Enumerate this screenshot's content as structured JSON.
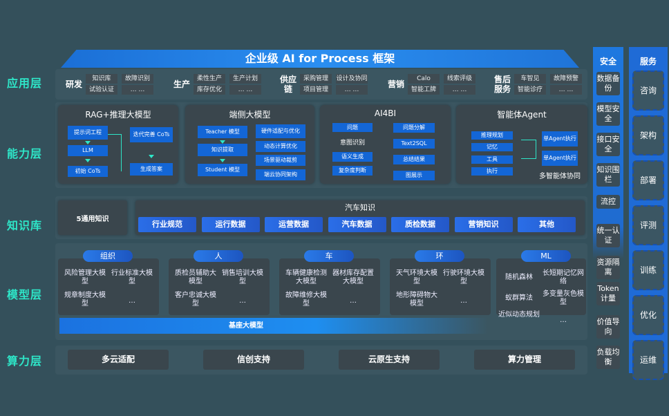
{
  "title": "企业级 AI for Process 框架",
  "layers": {
    "app": "应用层",
    "capability": "能力层",
    "knowledge": "知识库",
    "model": "模型层",
    "compute": "算力层"
  },
  "app_groups": [
    {
      "name": "研发",
      "cells": [
        "知识库",
        "故障识别",
        "试验认证",
        "… …"
      ]
    },
    {
      "name": "生产",
      "cells": [
        "柔性生产",
        "生产计划",
        "库存优化",
        "… …"
      ]
    },
    {
      "name": "供应链",
      "cells": [
        "采购管理",
        "设计及协同",
        "项目管理",
        "… …"
      ]
    },
    {
      "name": "营销",
      "cells": [
        "Calo",
        "线索评级",
        "智能工牌",
        "… …"
      ]
    },
    {
      "name": "售后服务",
      "cells": [
        "车智见",
        "故障预警",
        "智能诊疗",
        "… …"
      ]
    }
  ],
  "capability": {
    "rag": {
      "title": "RAG+推理大模型",
      "items": [
        "提示词工程",
        "LLM",
        "初始 CoTs",
        "迭代完善 CoTs",
        "生成答案"
      ]
    },
    "edge": {
      "title": "端侧大模型",
      "items": [
        "Teacher 模型",
        "知识提取",
        "Student 模型",
        "硬件适配与优化",
        "动态计算优化",
        "场景驱动裁剪",
        "端云协同架构"
      ]
    },
    "ai4bi": {
      "title": "AI4BI",
      "items": [
        "问题",
        "意图识别",
        "语义生成",
        "复杂度判断",
        "问题分解",
        "Text2SQL",
        "总结结果",
        "图展示"
      ]
    },
    "agent": {
      "title": "智能体Agent",
      "items": [
        "推理规划",
        "记忆",
        "工具",
        "执行",
        "单Agent执行",
        "单Agent执行"
      ],
      "caption": "多智能体协同"
    }
  },
  "knowledge": {
    "general": "5通用知识",
    "auto_title": "汽车知识",
    "auto_items": [
      "行业规范",
      "运行数据",
      "运营数据",
      "汽车数据",
      "质检数据",
      "营销知识",
      "其他"
    ]
  },
  "model": {
    "groups": [
      {
        "pill": "组织",
        "items": [
          "风险管理大模型",
          "行业标准大模型",
          "规章制度大模型",
          "…"
        ]
      },
      {
        "pill": "人",
        "items": [
          "质检员辅助大模型",
          "销售培训大模型",
          "客户忠诚大模型",
          "…"
        ]
      },
      {
        "pill": "车",
        "items": [
          "车辆健康检测大模型",
          "器材库存配置大模型",
          "故障维修大模型",
          "…"
        ]
      },
      {
        "pill": "环",
        "items": [
          "天气环境大模型",
          "行驶环境大模型",
          "地形障碍物大模型",
          "…"
        ]
      },
      {
        "pill": "ML",
        "items": [
          "随机森林",
          "长短期记忆网络",
          "蚁群算法",
          "多变量灰色模型",
          "近似动态规划",
          "…"
        ]
      }
    ],
    "base": "基座大模型"
  },
  "compute": [
    "多云适配",
    "信创支持",
    "云原生支持",
    "算力管理"
  ],
  "security": {
    "title": "安全",
    "items": [
      "数据备份",
      "模型安全",
      "接口安全",
      "知识围栏",
      "流控",
      "统一认证",
      "资源隔离",
      "Token计量",
      "价值导向",
      "负载均衡"
    ]
  },
  "service": {
    "title": "服务",
    "items": [
      "咨询",
      "架构",
      "部署",
      "评测",
      "训练",
      "优化",
      "运维"
    ]
  }
}
